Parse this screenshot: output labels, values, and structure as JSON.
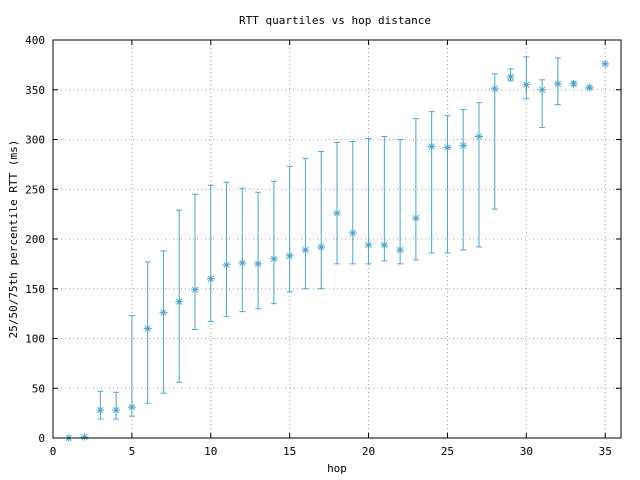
{
  "chart_data": {
    "type": "scatter",
    "title": "RTT quartiles vs hop distance",
    "xlabel": "hop",
    "ylabel": "25/50/75th percentile RTT (ms)",
    "xlim": [
      0,
      36
    ],
    "ylim": [
      0,
      400
    ],
    "x_ticks": [
      "0",
      "5",
      "10",
      "15",
      "20",
      "25",
      "30",
      "35"
    ],
    "y_ticks": [
      "0",
      "50",
      "100",
      "150",
      "200",
      "250",
      "300",
      "350",
      "400"
    ],
    "grid": true,
    "marker": "asterisk",
    "series_color": "#4aa6d0",
    "points": [
      {
        "x": 1,
        "median": 0,
        "p25": 0,
        "p75": 0
      },
      {
        "x": 2,
        "median": 1,
        "p25": 0,
        "p75": 1
      },
      {
        "x": 3,
        "median": 28,
        "p25": 19,
        "p75": 47
      },
      {
        "x": 4,
        "median": 28,
        "p25": 19,
        "p75": 46
      },
      {
        "x": 5,
        "median": 31,
        "p25": 22,
        "p75": 123
      },
      {
        "x": 6,
        "median": 110,
        "p25": 35,
        "p75": 177
      },
      {
        "x": 7,
        "median": 126,
        "p25": 45,
        "p75": 188
      },
      {
        "x": 8,
        "median": 137,
        "p25": 56,
        "p75": 229
      },
      {
        "x": 9,
        "median": 149,
        "p25": 109,
        "p75": 245
      },
      {
        "x": 10,
        "median": 160,
        "p25": 117,
        "p75": 254
      },
      {
        "x": 11,
        "median": 174,
        "p25": 122,
        "p75": 257
      },
      {
        "x": 12,
        "median": 176,
        "p25": 127,
        "p75": 251
      },
      {
        "x": 13,
        "median": 175,
        "p25": 130,
        "p75": 247
      },
      {
        "x": 14,
        "median": 180,
        "p25": 135,
        "p75": 258
      },
      {
        "x": 15,
        "median": 183,
        "p25": 147,
        "p75": 273
      },
      {
        "x": 16,
        "median": 189,
        "p25": 150,
        "p75": 281
      },
      {
        "x": 17,
        "median": 192,
        "p25": 150,
        "p75": 288
      },
      {
        "x": 18,
        "median": 226,
        "p25": 175,
        "p75": 297
      },
      {
        "x": 19,
        "median": 206,
        "p25": 175,
        "p75": 298
      },
      {
        "x": 20,
        "median": 194,
        "p25": 175,
        "p75": 301
      },
      {
        "x": 21,
        "median": 194,
        "p25": 178,
        "p75": 303
      },
      {
        "x": 22,
        "median": 189,
        "p25": 175,
        "p75": 300
      },
      {
        "x": 23,
        "median": 221,
        "p25": 179,
        "p75": 321
      },
      {
        "x": 24,
        "median": 293,
        "p25": 186,
        "p75": 328
      },
      {
        "x": 25,
        "median": 292,
        "p25": 186,
        "p75": 324
      },
      {
        "x": 26,
        "median": 294,
        "p25": 189,
        "p75": 330
      },
      {
        "x": 27,
        "median": 303,
        "p25": 192,
        "p75": 337
      },
      {
        "x": 28,
        "median": 351,
        "p25": 230,
        "p75": 366
      },
      {
        "x": 29,
        "median": 363,
        "p25": 359,
        "p75": 371
      },
      {
        "x": 30,
        "median": 355,
        "p25": 341,
        "p75": 383
      },
      {
        "x": 31,
        "median": 350,
        "p25": 312,
        "p75": 360
      },
      {
        "x": 32,
        "median": 356,
        "p25": 335,
        "p75": 382
      },
      {
        "x": 33,
        "median": 356,
        "p25": 354,
        "p75": 358
      },
      {
        "x": 34,
        "median": 352,
        "p25": 351,
        "p75": 354
      },
      {
        "x": 35,
        "median": 376,
        "p25": 376,
        "p75": 376
      }
    ]
  }
}
